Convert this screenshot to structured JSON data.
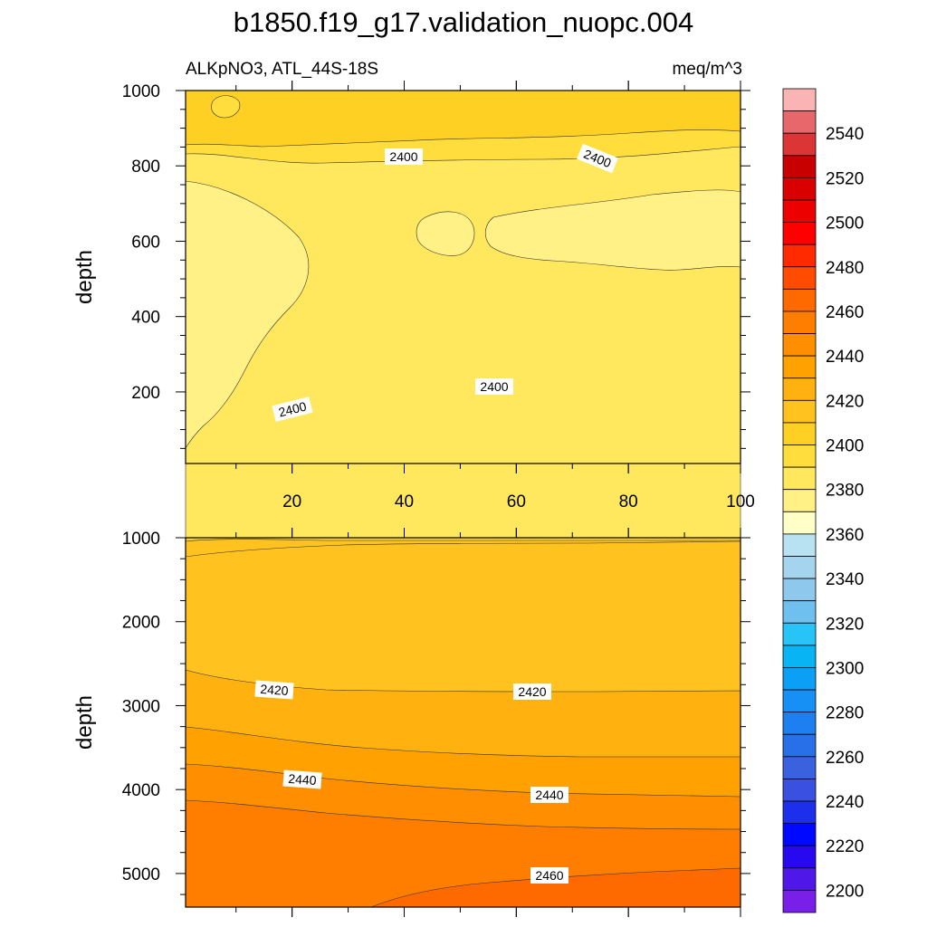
{
  "chart_data": {
    "type": "contour",
    "title": "b1850.f19_g17.validation_nuopc.004",
    "variable": "ALKpNO3, ATL_44S-18S",
    "units": "meq/m^3",
    "colorbar": {
      "tick_labels": [
        "2540",
        "2520",
        "2500",
        "2480",
        "2460",
        "2440",
        "2420",
        "2400",
        "2380",
        "2360",
        "2340",
        "2320",
        "2300",
        "2280",
        "2260",
        "2240",
        "2220",
        "2200"
      ],
      "colors_top_to_bottom": [
        "#fbb4b4",
        "#e8676a",
        "#dc3535",
        "#c80000",
        "#da0000",
        "#ec0000",
        "#ff0000",
        "#ff2a00",
        "#ff4c00",
        "#ff6a00",
        "#ff7e00",
        "#ff8f00",
        "#ffa100",
        "#ffb20f",
        "#ffc21f",
        "#ffd024",
        "#ffdd3c",
        "#ffe75e",
        "#fff185",
        "#ffffc8",
        "#b8e2f2",
        "#a4d4ee",
        "#8ec8ec",
        "#6fc0ee",
        "#28c4f7",
        "#08b4f4",
        "#0ba0f5",
        "#1690f5",
        "#1e80f0",
        "#2870e8",
        "#3a62de",
        "#3a50e0",
        "#1c30ec",
        "#0008ff",
        "#2808f0",
        "#5018e8",
        "#7820e8"
      ]
    },
    "panels": [
      {
        "name": "upper",
        "ylabel": "depth",
        "x_range": [
          1,
          100
        ],
        "y_range": [
          1000,
          10
        ],
        "x_ticks": [
          20,
          40,
          60,
          80,
          100
        ],
        "y_ticks": [
          200,
          400,
          600,
          800,
          1000
        ],
        "contour_labels": [
          {
            "text": "2400",
            "x": 39,
            "y": 195
          },
          {
            "text": "2400",
            "x": 77,
            "y": 185
          },
          {
            "text": "2400",
            "x": 56,
            "y": 800
          },
          {
            "text": "2400",
            "x": 19,
            "y": 840
          }
        ]
      },
      {
        "name": "lower",
        "ylabel": "depth",
        "x_range": [
          1,
          100
        ],
        "y_range": [
          1000,
          5400
        ],
        "x_ticks": [
          20,
          40,
          60,
          80,
          100
        ],
        "y_ticks": [
          1000,
          2000,
          3000,
          4000,
          5000
        ],
        "contour_labels": [
          {
            "text": "2420",
            "x": 17,
            "y": 2820
          },
          {
            "text": "2420",
            "x": 64,
            "y": 2830
          },
          {
            "text": "2440",
            "x": 22,
            "y": 3940
          },
          {
            "text": "2440",
            "x": 66,
            "y": 4040
          },
          {
            "text": "2460",
            "x": 66,
            "y": 5000
          }
        ]
      }
    ]
  }
}
